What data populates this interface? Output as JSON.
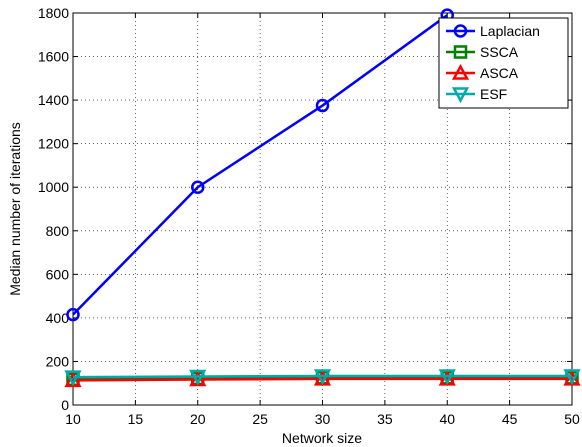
{
  "chart_data": {
    "type": "line",
    "xlabel": "Network size",
    "ylabel": "Median number of iterations",
    "xlim": [
      10,
      50
    ],
    "ylim": [
      0,
      1800
    ],
    "xticks": [
      10,
      15,
      20,
      25,
      30,
      35,
      40,
      45,
      50
    ],
    "yticks": [
      0,
      200,
      400,
      600,
      800,
      1000,
      1200,
      1400,
      1600,
      1800
    ],
    "grid": true,
    "legend_position": "top-right",
    "series": [
      {
        "name": "Laplacian",
        "color": "#0000ff",
        "marker": "circle",
        "x": [
          10,
          20,
          30,
          40
        ],
        "values": [
          415,
          1000,
          1375,
          1790
        ]
      },
      {
        "name": "SSCA",
        "color": "#008000",
        "marker": "square",
        "x": [
          10,
          20,
          30,
          40,
          50
        ],
        "values": [
          118,
          122,
          125,
          125,
          125
        ]
      },
      {
        "name": "ASCA",
        "color": "#ff0000",
        "marker": "triangle-up",
        "x": [
          10,
          20,
          30,
          40,
          50
        ],
        "values": [
          113,
          117,
          120,
          120,
          120
        ]
      },
      {
        "name": "ESF",
        "color": "#00aaaa",
        "marker": "triangle-down",
        "x": [
          10,
          20,
          30,
          40,
          50
        ],
        "values": [
          128,
          131,
          133,
          133,
          133
        ]
      }
    ]
  }
}
